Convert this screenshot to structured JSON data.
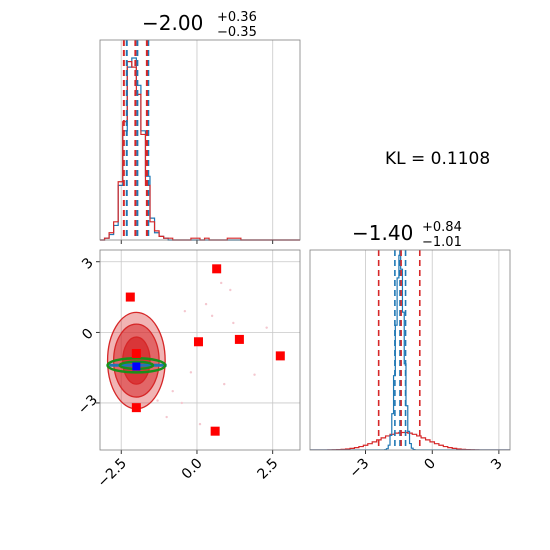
{
  "chart_data": [
    {
      "panel": "x-marginal",
      "type": "step-histogram",
      "title": {
        "median": "−2.00",
        "upper": "+0.36",
        "lower": "−0.35"
      },
      "xlim": [
        -3.2,
        3.4
      ],
      "bins_x": [
        -3.2,
        -3.05,
        -2.9,
        -2.75,
        -2.6,
        -2.45,
        -2.3,
        -2.15,
        -2.0,
        -1.85,
        -1.7,
        -1.55,
        -1.4,
        -1.25,
        -1.1,
        -0.95,
        -0.8,
        -0.65,
        -0.5,
        -0.35,
        -0.2,
        -0.05,
        0.1,
        0.25,
        0.4,
        0.55,
        0.7,
        0.85,
        1.0,
        1.15,
        1.3,
        1.45,
        1.6,
        1.75,
        1.9,
        2.05,
        2.2,
        2.35,
        2.5,
        2.65,
        2.8,
        2.95,
        3.1,
        3.25,
        3.4
      ],
      "series": [
        {
          "name": "",
          "color": "#1f77b4",
          "counts": [
            0,
            1,
            3,
            8,
            30,
            60,
            95,
            100,
            85,
            60,
            35,
            12,
            4,
            2,
            1,
            0,
            0,
            0,
            0,
            0,
            0,
            0,
            0,
            0,
            0,
            0,
            0,
            0,
            0,
            0,
            0,
            0,
            0,
            0,
            0,
            0,
            0,
            0,
            0,
            0,
            0,
            0,
            0,
            0
          ]
        },
        {
          "name": "",
          "color": "#d62728",
          "counts": [
            0,
            1,
            4,
            10,
            32,
            65,
            98,
            95,
            80,
            58,
            30,
            10,
            5,
            2,
            1,
            1,
            0,
            0,
            0,
            0,
            1,
            1,
            0,
            1,
            0,
            0,
            0,
            0,
            1,
            1,
            1,
            0,
            0,
            0,
            0,
            0,
            0,
            0,
            0,
            0,
            0,
            0,
            0,
            0
          ]
        }
      ],
      "quantile_lines": [
        {
          "color": "#1f77b4",
          "x": [
            -2.35,
            -2.0,
            -1.64
          ]
        },
        {
          "color": "#d62728",
          "x": [
            -2.38,
            -2.0,
            -1.62
          ]
        }
      ],
      "xtick_values": [
        -2.5,
        0.0,
        2.5
      ],
      "grid": true
    },
    {
      "panel": "joint",
      "type": "scatter-contour",
      "xlim": [
        -3.2,
        3.4
      ],
      "ylim": [
        -5.0,
        3.5
      ],
      "xtick_labels": [
        "−2.5",
        "0.0",
        "2.5"
      ],
      "xtick_values": [
        -2.5,
        0.0,
        2.5
      ],
      "ytick_labels": [
        "3",
        "0",
        "−3"
      ],
      "ytick_values": [
        3,
        0,
        -3
      ],
      "red_contours": [
        {
          "cx": -2.0,
          "cy": -1.2,
          "rx": 0.95,
          "ry": 2.05,
          "opacity": 0.35
        },
        {
          "cx": -2.0,
          "cy": -1.2,
          "rx": 0.75,
          "ry": 1.55,
          "opacity": 0.55
        },
        {
          "cx": -2.0,
          "cy": -1.2,
          "rx": 0.45,
          "ry": 1.0,
          "opacity": 0.75
        }
      ],
      "green_contours": [
        {
          "cx": -2.0,
          "cy": -1.4,
          "rx": 0.95,
          "ry": 0.3
        },
        {
          "cx": -2.0,
          "cy": -1.4,
          "rx": 0.55,
          "ry": 0.15
        }
      ],
      "blue_band": {
        "x0": -2.9,
        "x1": -1.0,
        "y": -1.4
      },
      "red_squares": [
        {
          "x": -2.2,
          "y": 1.5
        },
        {
          "x": 0.65,
          "y": 2.7
        },
        {
          "x": 0.05,
          "y": -0.4
        },
        {
          "x": 1.4,
          "y": -0.3
        },
        {
          "x": 2.75,
          "y": -1.0
        },
        {
          "x": -2.0,
          "y": -0.9
        },
        {
          "x": -2.0,
          "y": -3.2
        },
        {
          "x": 0.6,
          "y": -4.2
        }
      ],
      "blue_square": {
        "x": -2.0,
        "y": -1.45
      },
      "scatter_points": [
        {
          "x": 0.8,
          "y": 2.1
        },
        {
          "x": 1.1,
          "y": 1.8
        },
        {
          "x": 0.3,
          "y": 1.2
        },
        {
          "x": 0.5,
          "y": 0.7
        },
        {
          "x": 1.2,
          "y": 0.4
        },
        {
          "x": -0.8,
          "y": -2.5
        },
        {
          "x": -1.0,
          "y": -3.6
        },
        {
          "x": -0.5,
          "y": -3.0
        },
        {
          "x": 1.9,
          "y": -1.8
        },
        {
          "x": -0.4,
          "y": 0.9
        },
        {
          "x": 0.9,
          "y": -2.2
        },
        {
          "x": -1.3,
          "y": -2.9
        },
        {
          "x": 2.3,
          "y": 0.2
        },
        {
          "x": -0.2,
          "y": -1.7
        },
        {
          "x": 0.1,
          "y": -3.9
        }
      ]
    },
    {
      "panel": "y-marginal",
      "type": "step-histogram",
      "title": {
        "median": "−1.40",
        "upper": "+0.84",
        "lower": "−1.01"
      },
      "xlim": [
        -5.5,
        3.5
      ],
      "xtick_labels": [
        "−3",
        "0",
        "3"
      ],
      "xtick_values": [
        -3,
        0,
        3
      ],
      "blue_profile": {
        "center": -1.45,
        "sigma": 0.18,
        "height": 1.0
      },
      "red_profile": {
        "center": -1.3,
        "sigma": 1.05,
        "height": 0.09
      },
      "quantile_lines": [
        {
          "color": "#1f77b4",
          "x": [
            -1.68,
            -1.45,
            -1.2
          ]
        },
        {
          "color": "#d62728",
          "x": [
            -2.41,
            -1.4,
            -0.56
          ]
        }
      ],
      "grid": true
    }
  ],
  "annotation": {
    "text": "KL = 0.1108"
  }
}
